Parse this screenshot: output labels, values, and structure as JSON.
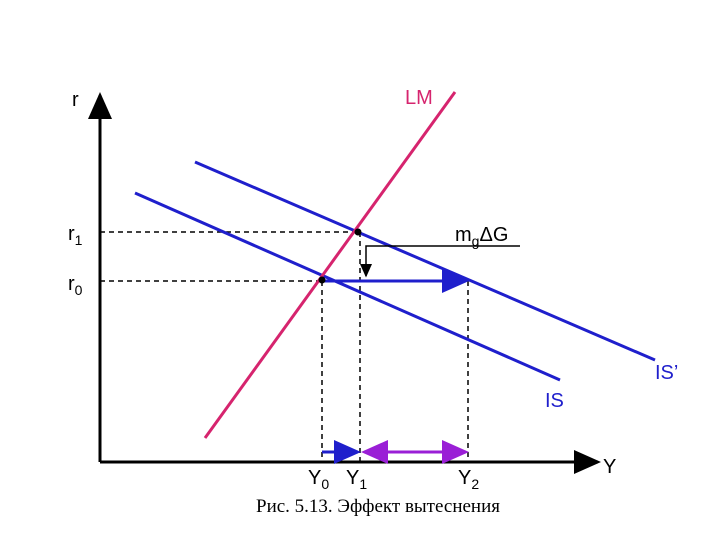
{
  "axes": {
    "y_label": "r",
    "x_label": "Y"
  },
  "curves": {
    "lm": "LM",
    "is": "IS",
    "is_shifted": "IS’"
  },
  "levels": [
    {
      "base": "r",
      "sub": "1"
    },
    {
      "base": "r",
      "sub": "0"
    }
  ],
  "outputs": [
    {
      "base": "Y",
      "sub": "0"
    },
    {
      "base": "Y",
      "sub": "1"
    },
    {
      "base": "Y",
      "sub": "2"
    }
  ],
  "shift_label": {
    "base": "m",
    "sub": "g",
    "rest": "ΔG"
  },
  "caption": "Рис. 5.13. Эффект вытеснения"
}
